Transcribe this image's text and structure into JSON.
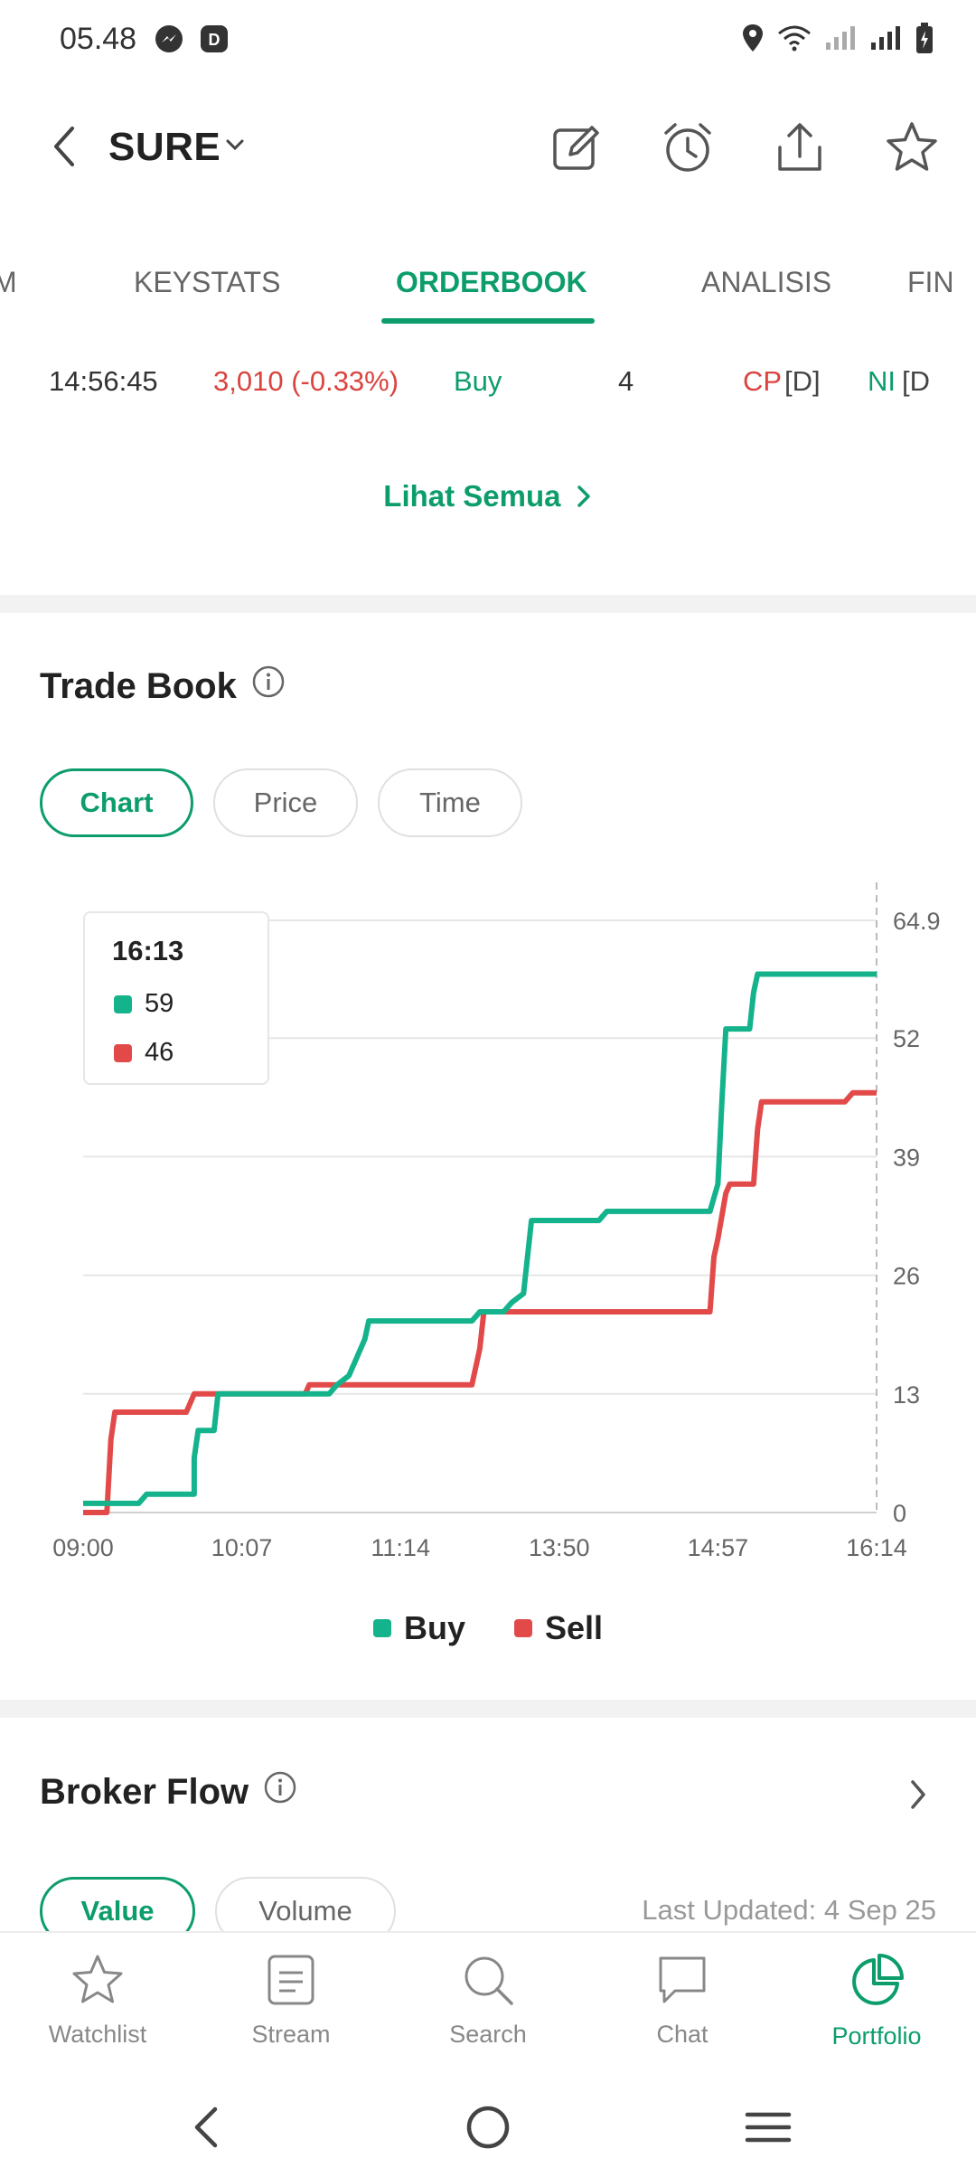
{
  "status_bar": {
    "time": "05.48"
  },
  "header": {
    "ticker": "SURE"
  },
  "tabs": [
    {
      "label": "M"
    },
    {
      "label": "KEYSTATS"
    },
    {
      "label": "ORDERBOOK"
    },
    {
      "label": "ANALISIS"
    },
    {
      "label": "FIN"
    }
  ],
  "trade_row": {
    "time": "14:56:45",
    "price": "3,010 (-0.33%)",
    "side": "Buy",
    "lot": "4",
    "buyer_code": "CP",
    "buyer_type": "[D]",
    "seller_code": "NI",
    "seller_type": "[D"
  },
  "see_all": "Lihat Semua",
  "trade_book": {
    "title": "Trade Book",
    "filters": [
      {
        "label": "Chart",
        "active": true
      },
      {
        "label": "Price",
        "active": false
      },
      {
        "label": "Time",
        "active": false
      }
    ],
    "tooltip": {
      "time": "16:13",
      "buy_value": "59",
      "sell_value": "46"
    },
    "legend": {
      "buy": "Buy",
      "sell": "Sell"
    }
  },
  "broker_flow": {
    "title": "Broker Flow",
    "filters": [
      {
        "label": "Value",
        "active": true
      },
      {
        "label": "Volume",
        "active": false
      }
    ],
    "last_updated": "Last Updated: 4 Sep 25"
  },
  "bottom_nav": [
    {
      "label": "Watchlist",
      "icon": "star-icon",
      "active": false
    },
    {
      "label": "Stream",
      "icon": "stream-icon",
      "active": false
    },
    {
      "label": "Search",
      "icon": "search-icon",
      "active": false
    },
    {
      "label": "Chat",
      "icon": "chat-icon",
      "active": false
    },
    {
      "label": "Portfolio",
      "icon": "portfolio-icon",
      "active": true
    }
  ],
  "colors": {
    "accent": "#0c9d6a",
    "buy": "#14b38c",
    "sell": "#e24a4a",
    "negative": "#d9443f"
  },
  "chart_data": {
    "type": "line",
    "x_tick_labels": [
      "09:00",
      "10:07",
      "11:14",
      "13:50",
      "14:57",
      "16:14"
    ],
    "y_tick_labels": [
      "0",
      "13",
      "26",
      "39",
      "52",
      "64.9"
    ],
    "ylim": [
      0,
      64.9
    ],
    "grid": true,
    "legend_position": "bottom",
    "series": [
      {
        "name": "Buy",
        "color": "#14b38c",
        "points": [
          [
            0,
            1
          ],
          [
            0.07,
            1
          ],
          [
            0.08,
            2
          ],
          [
            0.14,
            2
          ],
          [
            0.14,
            6
          ],
          [
            0.145,
            9
          ],
          [
            0.165,
            9
          ],
          [
            0.17,
            13
          ],
          [
            0.31,
            13
          ],
          [
            0.32,
            14
          ],
          [
            0.335,
            15
          ],
          [
            0.345,
            17
          ],
          [
            0.355,
            19
          ],
          [
            0.36,
            21
          ],
          [
            0.49,
            21
          ],
          [
            0.5,
            22
          ],
          [
            0.53,
            22
          ],
          [
            0.54,
            23
          ],
          [
            0.555,
            24
          ],
          [
            0.56,
            28
          ],
          [
            0.565,
            32
          ],
          [
            0.65,
            32
          ],
          [
            0.66,
            33
          ],
          [
            0.79,
            33
          ],
          [
            0.8,
            36
          ],
          [
            0.805,
            45
          ],
          [
            0.81,
            53
          ],
          [
            0.84,
            53
          ],
          [
            0.845,
            57
          ],
          [
            0.85,
            59
          ],
          [
            1.0,
            59
          ]
        ]
      },
      {
        "name": "Sell",
        "color": "#e24a4a",
        "points": [
          [
            0,
            0
          ],
          [
            0.03,
            0
          ],
          [
            0.035,
            8
          ],
          [
            0.04,
            11
          ],
          [
            0.13,
            11
          ],
          [
            0.135,
            12
          ],
          [
            0.14,
            13
          ],
          [
            0.28,
            13
          ],
          [
            0.285,
            14
          ],
          [
            0.49,
            14
          ],
          [
            0.495,
            16
          ],
          [
            0.5,
            18
          ],
          [
            0.505,
            22
          ],
          [
            0.79,
            22
          ],
          [
            0.795,
            28
          ],
          [
            0.8,
            30
          ],
          [
            0.81,
            35
          ],
          [
            0.815,
            36
          ],
          [
            0.845,
            36
          ],
          [
            0.85,
            42
          ],
          [
            0.855,
            45
          ],
          [
            0.96,
            45
          ],
          [
            0.97,
            46
          ],
          [
            1.0,
            46
          ]
        ]
      }
    ]
  }
}
